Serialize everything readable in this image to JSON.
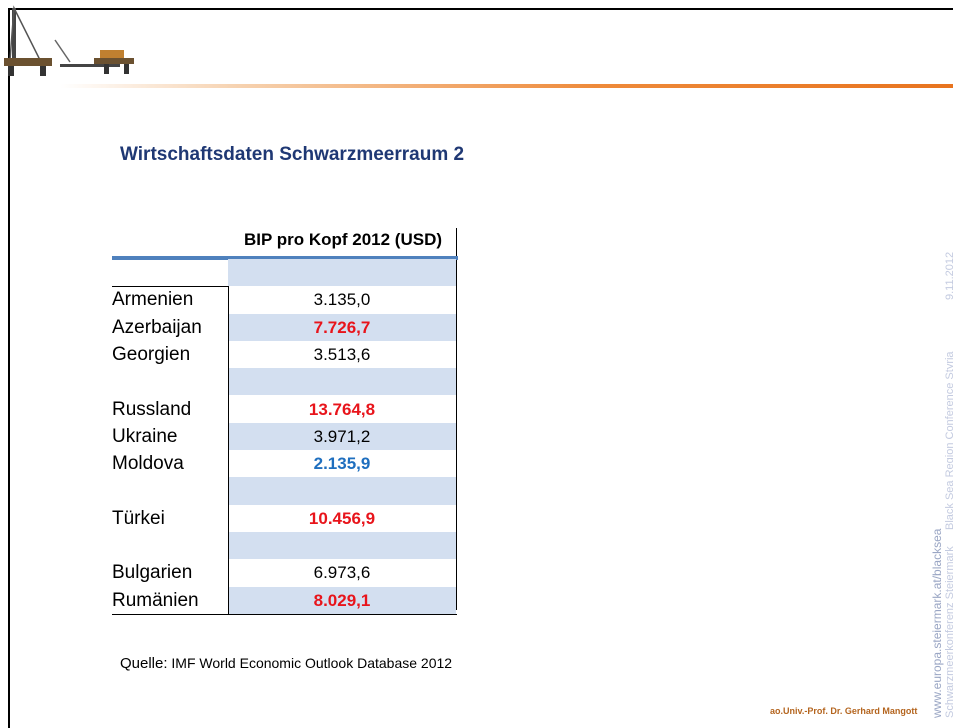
{
  "title": "Wirtschaftsdaten Schwarzmeerraum 2",
  "table": {
    "header": "BIP pro Kopf 2012 (USD)",
    "rows": [
      {
        "name": null,
        "value": null,
        "color": "#000000",
        "bold": false
      },
      {
        "name": "Armenien",
        "value": "3.135,0",
        "color": "#000000",
        "bold": false
      },
      {
        "name": "Azerbaijan",
        "value": "7.726,7",
        "color": "#e8141b",
        "bold": true
      },
      {
        "name": "Georgien",
        "value": "3.513,6",
        "color": "#000000",
        "bold": false
      },
      {
        "name": null,
        "value": null,
        "color": "#000000",
        "bold": false
      },
      {
        "name": "Russland",
        "value": "13.764,8",
        "color": "#e8141b",
        "bold": true
      },
      {
        "name": "Ukraine",
        "value": "3.971,2",
        "color": "#000000",
        "bold": false
      },
      {
        "name": "Moldova",
        "value": "2.135,9",
        "color": "#1f6fbf",
        "bold": true
      },
      {
        "name": null,
        "value": null,
        "color": "#000000",
        "bold": false
      },
      {
        "name": "Türkei",
        "value": "10.456,9",
        "color": "#e8141b",
        "bold": true
      },
      {
        "name": null,
        "value": null,
        "color": "#000000",
        "bold": false
      },
      {
        "name": "Bulgarien",
        "value": "6.973,6",
        "color": "#000000",
        "bold": false
      },
      {
        "name": "Rumänien",
        "value": "8.029,1",
        "color": "#e8141b",
        "bold": true
      }
    ]
  },
  "source": {
    "label": "Quelle:",
    "text": "IMF World Economic Outlook Database 2012"
  },
  "author": "ao.Univ.-Prof. Dr. Gerhard Mangott",
  "sidebar": {
    "url": "www.europa.steiermark.at/blacksea",
    "conference_de": "Schwarzmeerkonferenz Steiermark",
    "conference_en": "Black Sea Region Conference Styria",
    "date": "9.11.2012"
  }
}
